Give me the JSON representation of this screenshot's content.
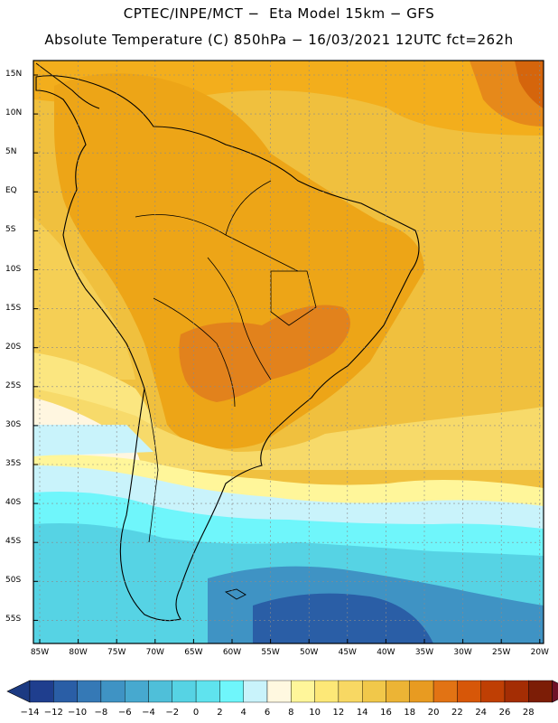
{
  "header": {
    "line1": "CPTEC/INPE/MCT −  Eta Model 15km − GFS",
    "line2": "Absolute Temperature (C) 850hPa − 16/03/2021 12UTC fct=262h"
  },
  "map": {
    "lat_labels": [
      "15N",
      "10N",
      "5N",
      "EQ",
      "5S",
      "10S",
      "15S",
      "20S",
      "25S",
      "30S",
      "35S",
      "40S",
      "45S",
      "50S",
      "55S"
    ],
    "lon_labels": [
      "85W",
      "80W",
      "75W",
      "70W",
      "65W",
      "60W",
      "55W",
      "50W",
      "45W",
      "40W",
      "35W",
      "30W",
      "25W",
      "20W"
    ]
  },
  "colorbar": {
    "labels": [
      "-14",
      "-12",
      "-10",
      "-8",
      "-6",
      "-4",
      "-2",
      "0",
      "2",
      "4",
      "6",
      "8",
      "10",
      "12",
      "14",
      "16",
      "18",
      "20",
      "22",
      "24",
      "26",
      "28"
    ],
    "colors": [
      "#1f3e8e",
      "#2a5ea6",
      "#3579b6",
      "#3f93c4",
      "#47a9cf",
      "#4fbfd9",
      "#56d3e4",
      "#5fe3ee",
      "#6ff6fb",
      "#c9f3fb",
      "#fff8e0",
      "#fff69a",
      "#fde877",
      "#f8d863",
      "#f1c84a",
      "#ecb435",
      "#e89b21",
      "#e27314",
      "#d75708",
      "#bf3f04",
      "#a42d04",
      "#7c1d06"
    ],
    "low_color": "#1c3a82",
    "high_color": "#6f1228"
  }
}
